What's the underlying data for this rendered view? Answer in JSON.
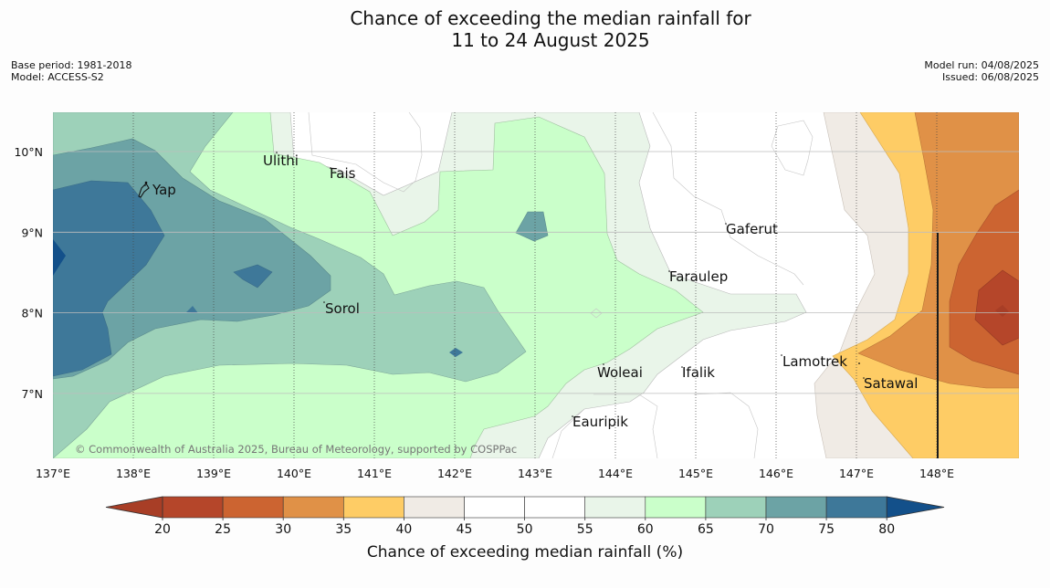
{
  "title": {
    "line1": "Chance of exceeding the median rainfall for",
    "line2": "11 to 24 August 2025"
  },
  "meta_left": {
    "base_period": "Base period: 1981-2018",
    "model": "Model: ACCESS-S2"
  },
  "meta_right": {
    "model_run": "Model run: 04/08/2025",
    "issued": "Issued: 06/08/2025"
  },
  "map": {
    "lon_labels": [
      "137°E",
      "138°E",
      "139°E",
      "140°E",
      "141°E",
      "142°E",
      "143°E",
      "144°E",
      "145°E",
      "146°E",
      "147°E",
      "148°E"
    ],
    "lat_labels": [
      "10°N",
      "9°N",
      "8°N",
      "7°N"
    ],
    "places": [
      {
        "name": "Ulithi"
      },
      {
        "name": "Fais"
      },
      {
        "name": "Yap"
      },
      {
        "name": "Gaferut"
      },
      {
        "name": "Faraulep"
      },
      {
        "name": "Sorol"
      },
      {
        "name": "Woleai"
      },
      {
        "name": "Ifalik"
      },
      {
        "name": "Lamotrek"
      },
      {
        "name": "Satawal"
      },
      {
        "name": "Eauripik"
      }
    ],
    "copyright": "© Commonwealth of Australia 2025, Bureau of Meteorology, supported by COSPPac"
  },
  "colorbar": {
    "ticks": [
      "20",
      "25",
      "30",
      "35",
      "40",
      "45",
      "50",
      "55",
      "60",
      "65",
      "70",
      "75",
      "80"
    ],
    "colors": [
      "#b5462a",
      "#cc6431",
      "#e09147",
      "#fecc65",
      "#f0ebe5",
      "#ffffff",
      "#ffffff",
      "#e9f5e9",
      "#caffca",
      "#9dd1b9",
      "#6ca3a5",
      "#3e7899"
    ],
    "low_extend_color": "#a83e26",
    "high_extend_color": "#13508a",
    "label": "Chance of exceeding median rainfall (%)"
  }
}
